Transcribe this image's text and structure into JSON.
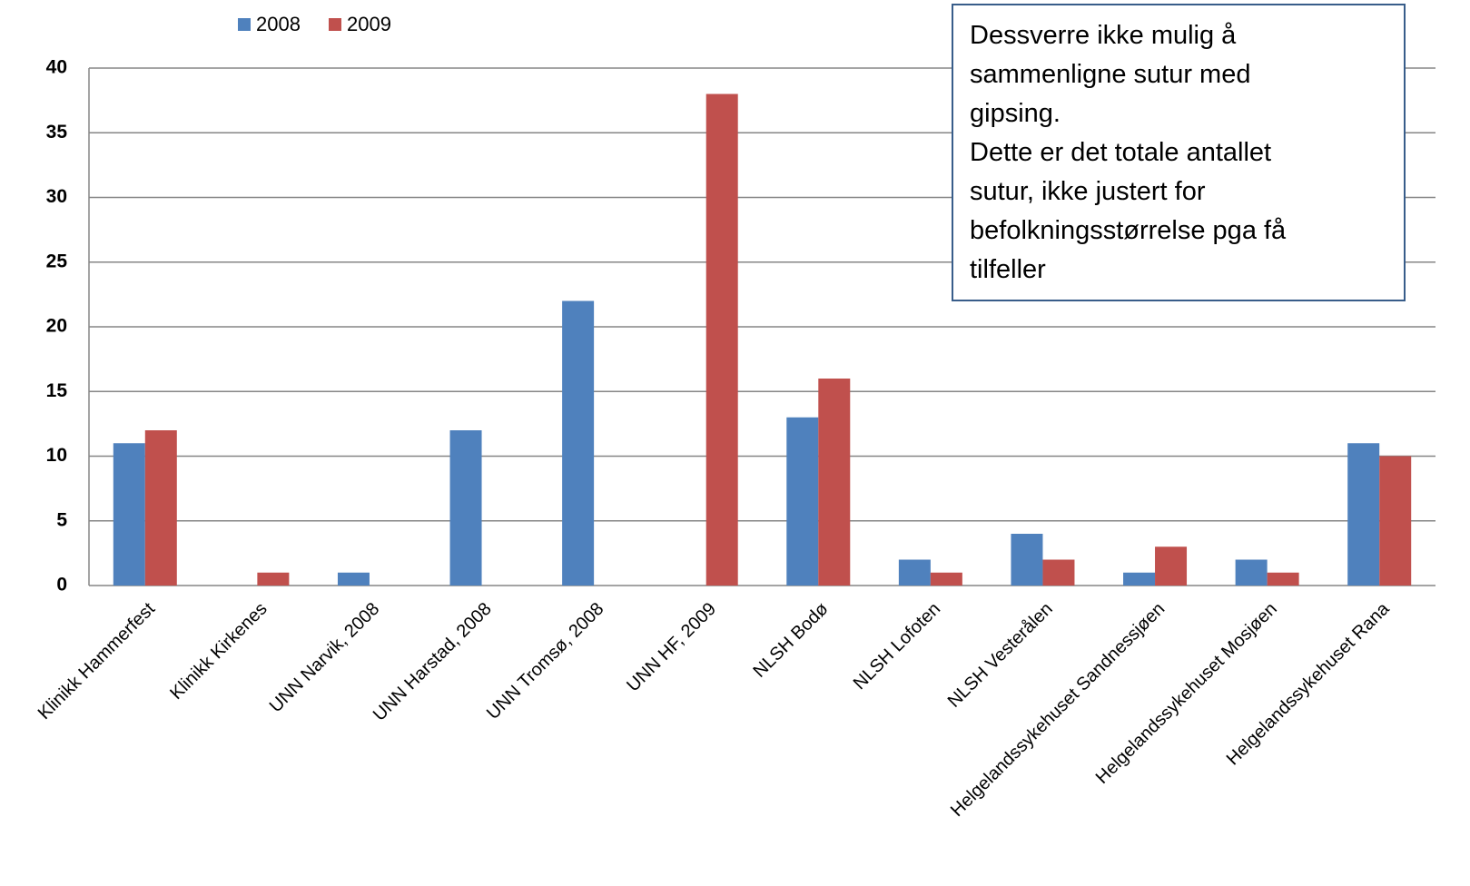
{
  "chart_data": {
    "type": "bar",
    "categories": [
      "Klinikk Hammerfest",
      "Klinikk Kirkenes",
      "UNN Narvik, 2008",
      "UNN Harstad, 2008",
      "UNN Tromsø, 2008",
      "UNN HF, 2009",
      "NLSH Bodø",
      "NLSH Lofoten",
      "NLSH Vesterålen",
      "Helgelandssykehuset Sandnessjøen",
      "Helgelandssykehuset Mosjøen",
      "Helgelandssykehuset Rana"
    ],
    "series": [
      {
        "name": "2008",
        "color": "#4f81bd",
        "values": [
          11,
          0,
          1,
          12,
          22,
          0,
          13,
          2,
          4,
          1,
          2,
          11
        ]
      },
      {
        "name": "2009",
        "color": "#c0504d",
        "values": [
          12,
          1,
          0,
          0,
          0,
          38,
          16,
          1,
          2,
          3,
          1,
          10
        ]
      }
    ],
    "ylim": [
      0,
      40
    ],
    "yticks": [
      0,
      5,
      10,
      15,
      20,
      25,
      30,
      35,
      40
    ],
    "grid": true,
    "legend": "top",
    "annotation": [
      "Dessverre ikke mulig å",
      "sammenligne sutur med",
      "gipsing.",
      "Dette er det totale antallet",
      "sutur, ikke justert for",
      "befolkningsstørrelse  pga få",
      "tilfeller"
    ]
  }
}
